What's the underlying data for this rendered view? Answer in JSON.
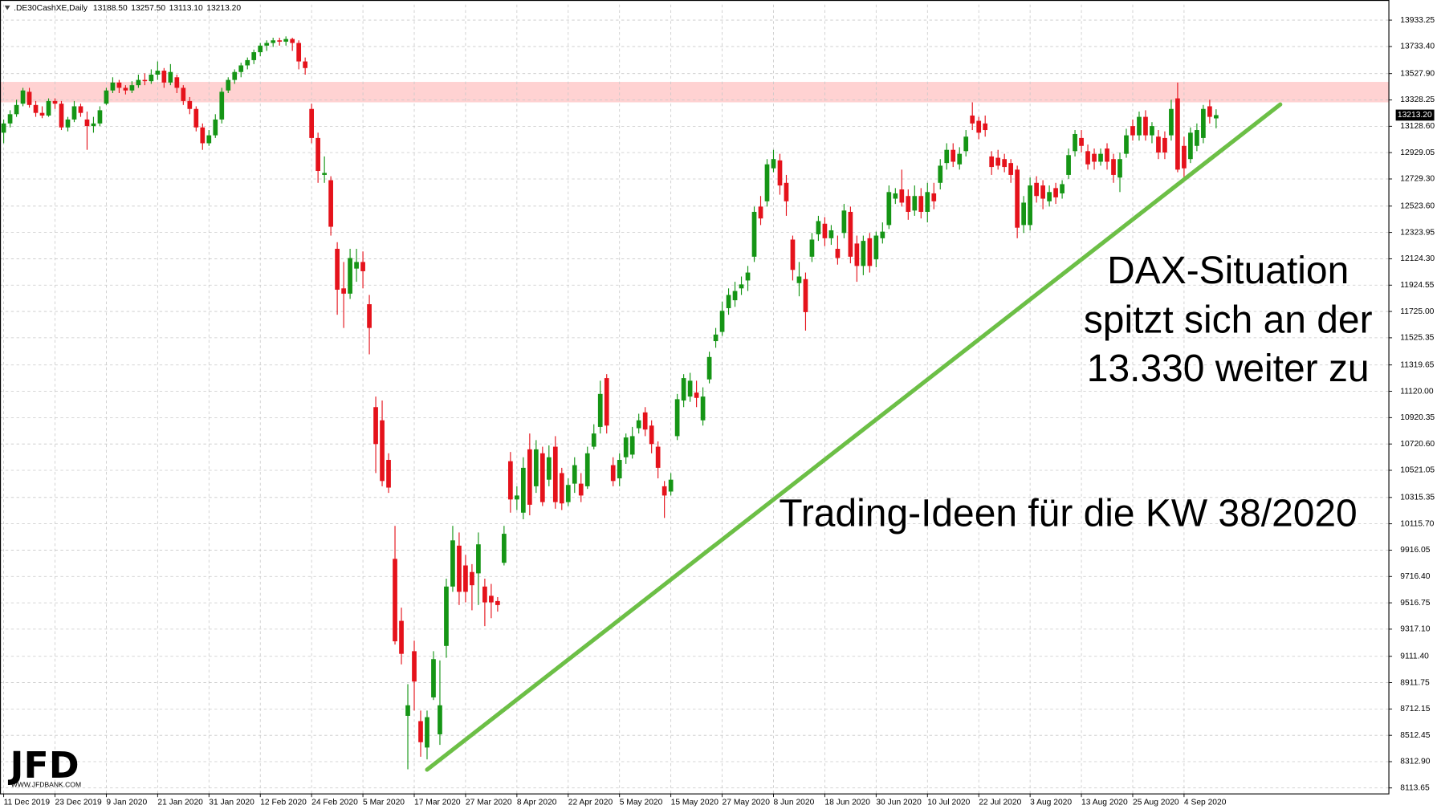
{
  "chart_data": {
    "type": "candlestick",
    "symbol": ".DE30CashXE,Daily",
    "ohlc_labels": [
      "13188.50",
      "13257.50",
      "13113.10",
      "13213.20"
    ],
    "annotations": [
      "DAX-Situation",
      "spitzt sich an der",
      "13.330 weiter zu",
      "Trading-Ideen für die KW 38/2020"
    ],
    "logo": "JFD",
    "logo_url": "WWW.JFDBANK.COM",
    "up_color": "#159515",
    "down_color": "#e5121b",
    "trendline_color": "#6cbf46",
    "zone_color": "#ffd2d2",
    "grid": true,
    "last_price": {
      "value": 13213.2,
      "label": "13213.20"
    },
    "resistance_zone": [
      13310,
      13465
    ],
    "trendline": {
      "x": [
        66,
        199
      ],
      "values": [
        8252,
        13294
      ]
    },
    "ylim": [
      8072,
      14051
    ],
    "yticks": [
      13933.25,
      {
        "value": 13733.4,
        "label": "13733.40"
      },
      {
        "value": 13527.9,
        "label": "13527.90"
      },
      13328.25,
      {
        "value": 13128.6,
        "label": "13128.60"
      },
      12929.05,
      {
        "value": 12729.3,
        "label": "12729.30"
      },
      {
        "value": 12523.6,
        "label": "12523.60"
      },
      12323.95,
      {
        "value": 12124.3,
        "label": "12124.30"
      },
      11924.55,
      {
        "value": 11725,
        "label": "11725.00"
      },
      11525.35,
      11319.65,
      {
        "value": 11120,
        "label": "11120.00"
      },
      10920.35,
      {
        "value": 10720.6,
        "label": "10720.60"
      },
      10521.05,
      10315.35,
      {
        "value": 10115.7,
        "label": "10115.70"
      },
      9916.05,
      {
        "value": 9716.4,
        "label": "9716.40"
      },
      9516.75,
      {
        "value": 9317.1,
        "label": "9317.10"
      },
      {
        "value": 9111.4,
        "label": "9111.40"
      },
      8911.75,
      8712.15,
      8512.45,
      {
        "value": 8312.9,
        "label": "8312.90"
      },
      8113.65
    ],
    "categories": [
      "11 Dec 2019",
      null,
      null,
      null,
      null,
      null,
      null,
      null,
      "23 Dec 2019",
      null,
      null,
      null,
      null,
      null,
      null,
      null,
      "9 Jan 2020",
      null,
      null,
      null,
      null,
      null,
      null,
      null,
      "21 Jan 2020",
      null,
      null,
      null,
      null,
      null,
      null,
      null,
      "31 Jan 2020",
      null,
      null,
      null,
      null,
      null,
      null,
      null,
      "12 Feb 2020",
      null,
      null,
      null,
      null,
      null,
      null,
      null,
      "24 Feb 2020",
      null,
      null,
      null,
      null,
      null,
      null,
      null,
      "5 Mar 2020",
      null,
      null,
      null,
      null,
      null,
      null,
      null,
      "17 Mar 2020",
      null,
      null,
      null,
      null,
      null,
      null,
      null,
      "27 Mar 2020",
      null,
      null,
      null,
      null,
      null,
      null,
      null,
      "8 Apr 2020",
      null,
      null,
      null,
      null,
      null,
      null,
      null,
      "22 Apr 2020",
      null,
      null,
      null,
      null,
      null,
      null,
      null,
      "5 May 2020",
      null,
      null,
      null,
      null,
      null,
      null,
      null,
      "15 May 2020",
      null,
      null,
      null,
      null,
      null,
      null,
      null,
      "27 May 2020",
      null,
      null,
      null,
      null,
      null,
      null,
      null,
      "8 Jun 2020",
      null,
      null,
      null,
      null,
      null,
      null,
      null,
      "18 Jun 2020",
      null,
      null,
      null,
      null,
      null,
      null,
      null,
      "30 Jun 2020",
      null,
      null,
      null,
      null,
      null,
      null,
      null,
      "10 Jul 2020",
      null,
      null,
      null,
      null,
      null,
      null,
      null,
      "22 Jul 2020",
      null,
      null,
      null,
      null,
      null,
      null,
      null,
      "3 Aug 2020",
      null,
      null,
      null,
      null,
      null,
      null,
      null,
      "13 Aug 2020",
      null,
      null,
      null,
      null,
      null,
      null,
      null,
      "25 Aug 2020",
      null,
      null,
      null,
      null,
      null,
      null,
      null,
      "4 Sep 2020",
      null,
      null,
      null,
      null,
      null
    ],
    "open": [
      13080,
      13150,
      13220,
      13300,
      13390,
      13290,
      13230,
      13210,
      13320,
      13300,
      13120,
      13180,
      13280,
      13180,
      13130,
      13150,
      13300,
      13400,
      13460,
      13420,
      13400,
      13440,
      13480,
      13470,
      13520,
      13550,
      13460,
      13500,
      13420,
      13320,
      13260,
      13120,
      13000,
      13060,
      13180,
      13400,
      13480,
      13540,
      13590,
      13630,
      13690,
      13740,
      13760,
      13780,
      13770,
      13790,
      13760,
      13620,
      13260,
      13040,
      12760,
      12720,
      12200,
      11900,
      11860,
      12050,
      12100,
      11780,
      11000,
      10900,
      10600,
      9850,
      9380,
      8660,
      9150,
      8620,
      8420,
      8800,
      8520,
      9190,
      9640,
      9950,
      9800,
      9750,
      9740,
      9640,
      9570,
      9530,
      9820,
      10590,
      10300,
      10200,
      10680,
      10400,
      10650,
      10450,
      10700,
      10500,
      10280,
      10420,
      10420,
      10400,
      10700,
      10850,
      11220,
      10560,
      10460,
      10620,
      10640,
      10840,
      10960,
      10860,
      10700,
      10400,
      10360,
      10780,
      11050,
      11080,
      11110,
      10900,
      11210,
      11500,
      11570,
      11750,
      11810,
      11900,
      11960,
      12140,
      12520,
      12560,
      12810,
      12870,
      12700,
      12270,
      11940,
      11970,
      12140,
      12310,
      12390,
      12280,
      12200,
      12320,
      12480,
      12240,
      12070,
      12280,
      12120,
      12280,
      12380,
      12580,
      12650,
      12600,
      12490,
      12600,
      12480,
      12620,
      12700,
      12850,
      12950,
      12840,
      12940,
      13210,
      13170,
      13150,
      12900,
      12890,
      12880,
      12850,
      12800,
      12380,
      12380,
      12700,
      12680,
      12560,
      12660,
      12620,
      12760,
      12940,
      13040,
      12940,
      12920,
      12860,
      12960,
      12880,
      12740,
      12920,
      13130,
      13060,
      13200,
      13060,
      13050,
      13040,
      13060,
      13340,
      12980,
      12880,
      12980,
      13040,
      13280,
      13188.5
    ],
    "high": [
      13180,
      13250,
      13330,
      13420,
      13420,
      13320,
      13280,
      13340,
      13340,
      13320,
      13200,
      13320,
      13300,
      13240,
      13200,
      13280,
      13420,
      13500,
      13480,
      13440,
      13470,
      13520,
      13530,
      13560,
      13620,
      13570,
      13600,
      13520,
      13440,
      13350,
      13280,
      13150,
      13100,
      13220,
      13420,
      13500,
      13560,
      13610,
      13650,
      13710,
      13760,
      13780,
      13800,
      13800,
      13810,
      13800,
      13780,
      13650,
      13300,
      13080,
      12900,
      12750,
      12250,
      12100,
      12200,
      12200,
      12180,
      11850,
      11080,
      11050,
      10650,
      10100,
      9480,
      8900,
      9230,
      8700,
      8700,
      9150,
      9080,
      9700,
      10100,
      10050,
      9880,
      9810,
      10050,
      9700,
      9660,
      9560,
      10100,
      10660,
      10400,
      10620,
      10800,
      10750,
      10700,
      10710,
      10780,
      10540,
      10460,
      10620,
      10500,
      10700,
      10870,
      11200,
      11250,
      10620,
      10650,
      10800,
      10850,
      10950,
      11000,
      10900,
      10740,
      10440,
      10500,
      11100,
      11250,
      11260,
      11200,
      11150,
      11420,
      11600,
      11800,
      11900,
      11950,
      11990,
      12070,
      12520,
      12600,
      12880,
      12950,
      12920,
      12760,
      12300,
      12100,
      12020,
      12320,
      12450,
      12440,
      12380,
      12300,
      12540,
      12520,
      12300,
      12300,
      12320,
      12330,
      12400,
      12680,
      12660,
      12800,
      12650,
      12680,
      12660,
      12700,
      12700,
      12880,
      13000,
      13000,
      12970,
      13100,
      13310,
      13200,
      13210,
      12940,
      12950,
      12920,
      12880,
      12830,
      12600,
      12740,
      12750,
      12720,
      12680,
      12700,
      12720,
      12960,
      13100,
      13100,
      12990,
      12960,
      12960,
      13000,
      12920,
      12930,
      13110,
      13180,
      13240,
      13250,
      13160,
      13100,
      13090,
      13330,
      13460,
      13050,
      13120,
      13150,
      13290,
      13330,
      13257.5
    ],
    "low": [
      13000,
      13120,
      13200,
      13280,
      13270,
      13200,
      13190,
      13200,
      13260,
      13100,
      13090,
      13160,
      13200,
      12950,
      13080,
      13130,
      13290,
      13380,
      13380,
      13370,
      13380,
      13420,
      13440,
      13450,
      13480,
      13420,
      13440,
      13380,
      13290,
      13220,
      13090,
      12950,
      12980,
      13040,
      13150,
      13380,
      13450,
      13500,
      13560,
      13600,
      13660,
      13700,
      13730,
      13740,
      13740,
      13700,
      13560,
      13520,
      13000,
      12700,
      12700,
      12300,
      11700,
      11600,
      11820,
      11950,
      11900,
      11400,
      10500,
      10400,
      10350,
      9200,
      9050,
      8255,
      8700,
      8350,
      8330,
      8780,
      8440,
      9100,
      9600,
      9500,
      9520,
      9460,
      9500,
      9340,
      9400,
      9450,
      9800,
      10200,
      10220,
      10150,
      10180,
      10350,
      10250,
      10400,
      10230,
      10220,
      10250,
      10350,
      10280,
      10380,
      10680,
      10800,
      10800,
      10400,
      10400,
      10570,
      10610,
      10800,
      10780,
      10650,
      10460,
      10160,
      10330,
      10750,
      11000,
      11040,
      11000,
      10860,
      11180,
      11450,
      11540,
      11700,
      11760,
      11850,
      11880,
      12100,
      12380,
      12520,
      12780,
      12610,
      12450,
      11960,
      11840,
      11580,
      12100,
      12260,
      12220,
      12230,
      12080,
      12280,
      12090,
      11950,
      12000,
      12020,
      12060,
      12240,
      12350,
      12540,
      12520,
      12420,
      12450,
      12430,
      12400,
      12500,
      12650,
      12800,
      12820,
      12800,
      12900,
      13100,
      13030,
      13050,
      12760,
      12800,
      12780,
      12700,
      12280,
      12320,
      12340,
      12550,
      12500,
      12520,
      12540,
      12580,
      12730,
      12900,
      12930,
      12800,
      12800,
      12830,
      12800,
      12700,
      12630,
      12890,
      13020,
      13020,
      13020,
      13000,
      12880,
      12880,
      13020,
      12780,
      12740,
      12850,
      12940,
      13000,
      13150,
      13113.1
    ],
    "close": [
      13150,
      13220,
      13290,
      13400,
      13290,
      13230,
      13210,
      13320,
      13300,
      13120,
      13180,
      13280,
      13230,
      13130,
      13150,
      13250,
      13400,
      13460,
      13420,
      13400,
      13440,
      13480,
      13470,
      13520,
      13550,
      13460,
      13540,
      13420,
      13320,
      13260,
      13120,
      13000,
      13060,
      13180,
      13390,
      13480,
      13540,
      13590,
      13630,
      13690,
      13740,
      13760,
      13780,
      13770,
      13790,
      13760,
      13620,
      13570,
      13040,
      12790,
      12775,
      12367,
      11890,
      11860,
      12130,
      12100,
      12030,
      11600,
      10720,
      10440,
      10390,
      9225,
      9130,
      8740,
      8920,
      8460,
      8650,
      9090,
      8740,
      9640,
      9990,
      9600,
      9600,
      9650,
      9960,
      9520,
      9520,
      9500,
      10040,
      10300,
      10330,
      10540,
      10260,
      10680,
      10280,
      10620,
      10280,
      10270,
      10410,
      10560,
      10330,
      10650,
      10800,
      11100,
      10860,
      10440,
      10600,
      10770,
      10780,
      10900,
      10830,
      10720,
      10540,
      10330,
      10450,
      11060,
      11220,
      11200,
      11070,
      11080,
      11380,
      11550,
      11730,
      11850,
      11880,
      11930,
      12020,
      12480,
      12430,
      12840,
      12880,
      12680,
      12560,
      12040,
      11990,
      11720,
      12270,
      12410,
      12280,
      12340,
      12130,
      12490,
      12140,
      12070,
      12260,
      12070,
      12300,
      12330,
      12630,
      12620,
      12550,
      12480,
      12600,
      12480,
      12630,
      12560,
      12830,
      12950,
      12860,
      12920,
      13050,
      13150,
      13080,
      13100,
      12820,
      12830,
      12820,
      12760,
      12360,
      12550,
      12680,
      12600,
      12580,
      12630,
      12590,
      12690,
      12910,
      13070,
      12980,
      12840,
      12860,
      12920,
      12860,
      12760,
      12880,
      13060,
      13060,
      13200,
      13060,
      13130,
      12930,
      12930,
      13260,
      12800,
      12810,
      13080,
      13100,
      13260,
      13200,
      13213.2
    ]
  }
}
